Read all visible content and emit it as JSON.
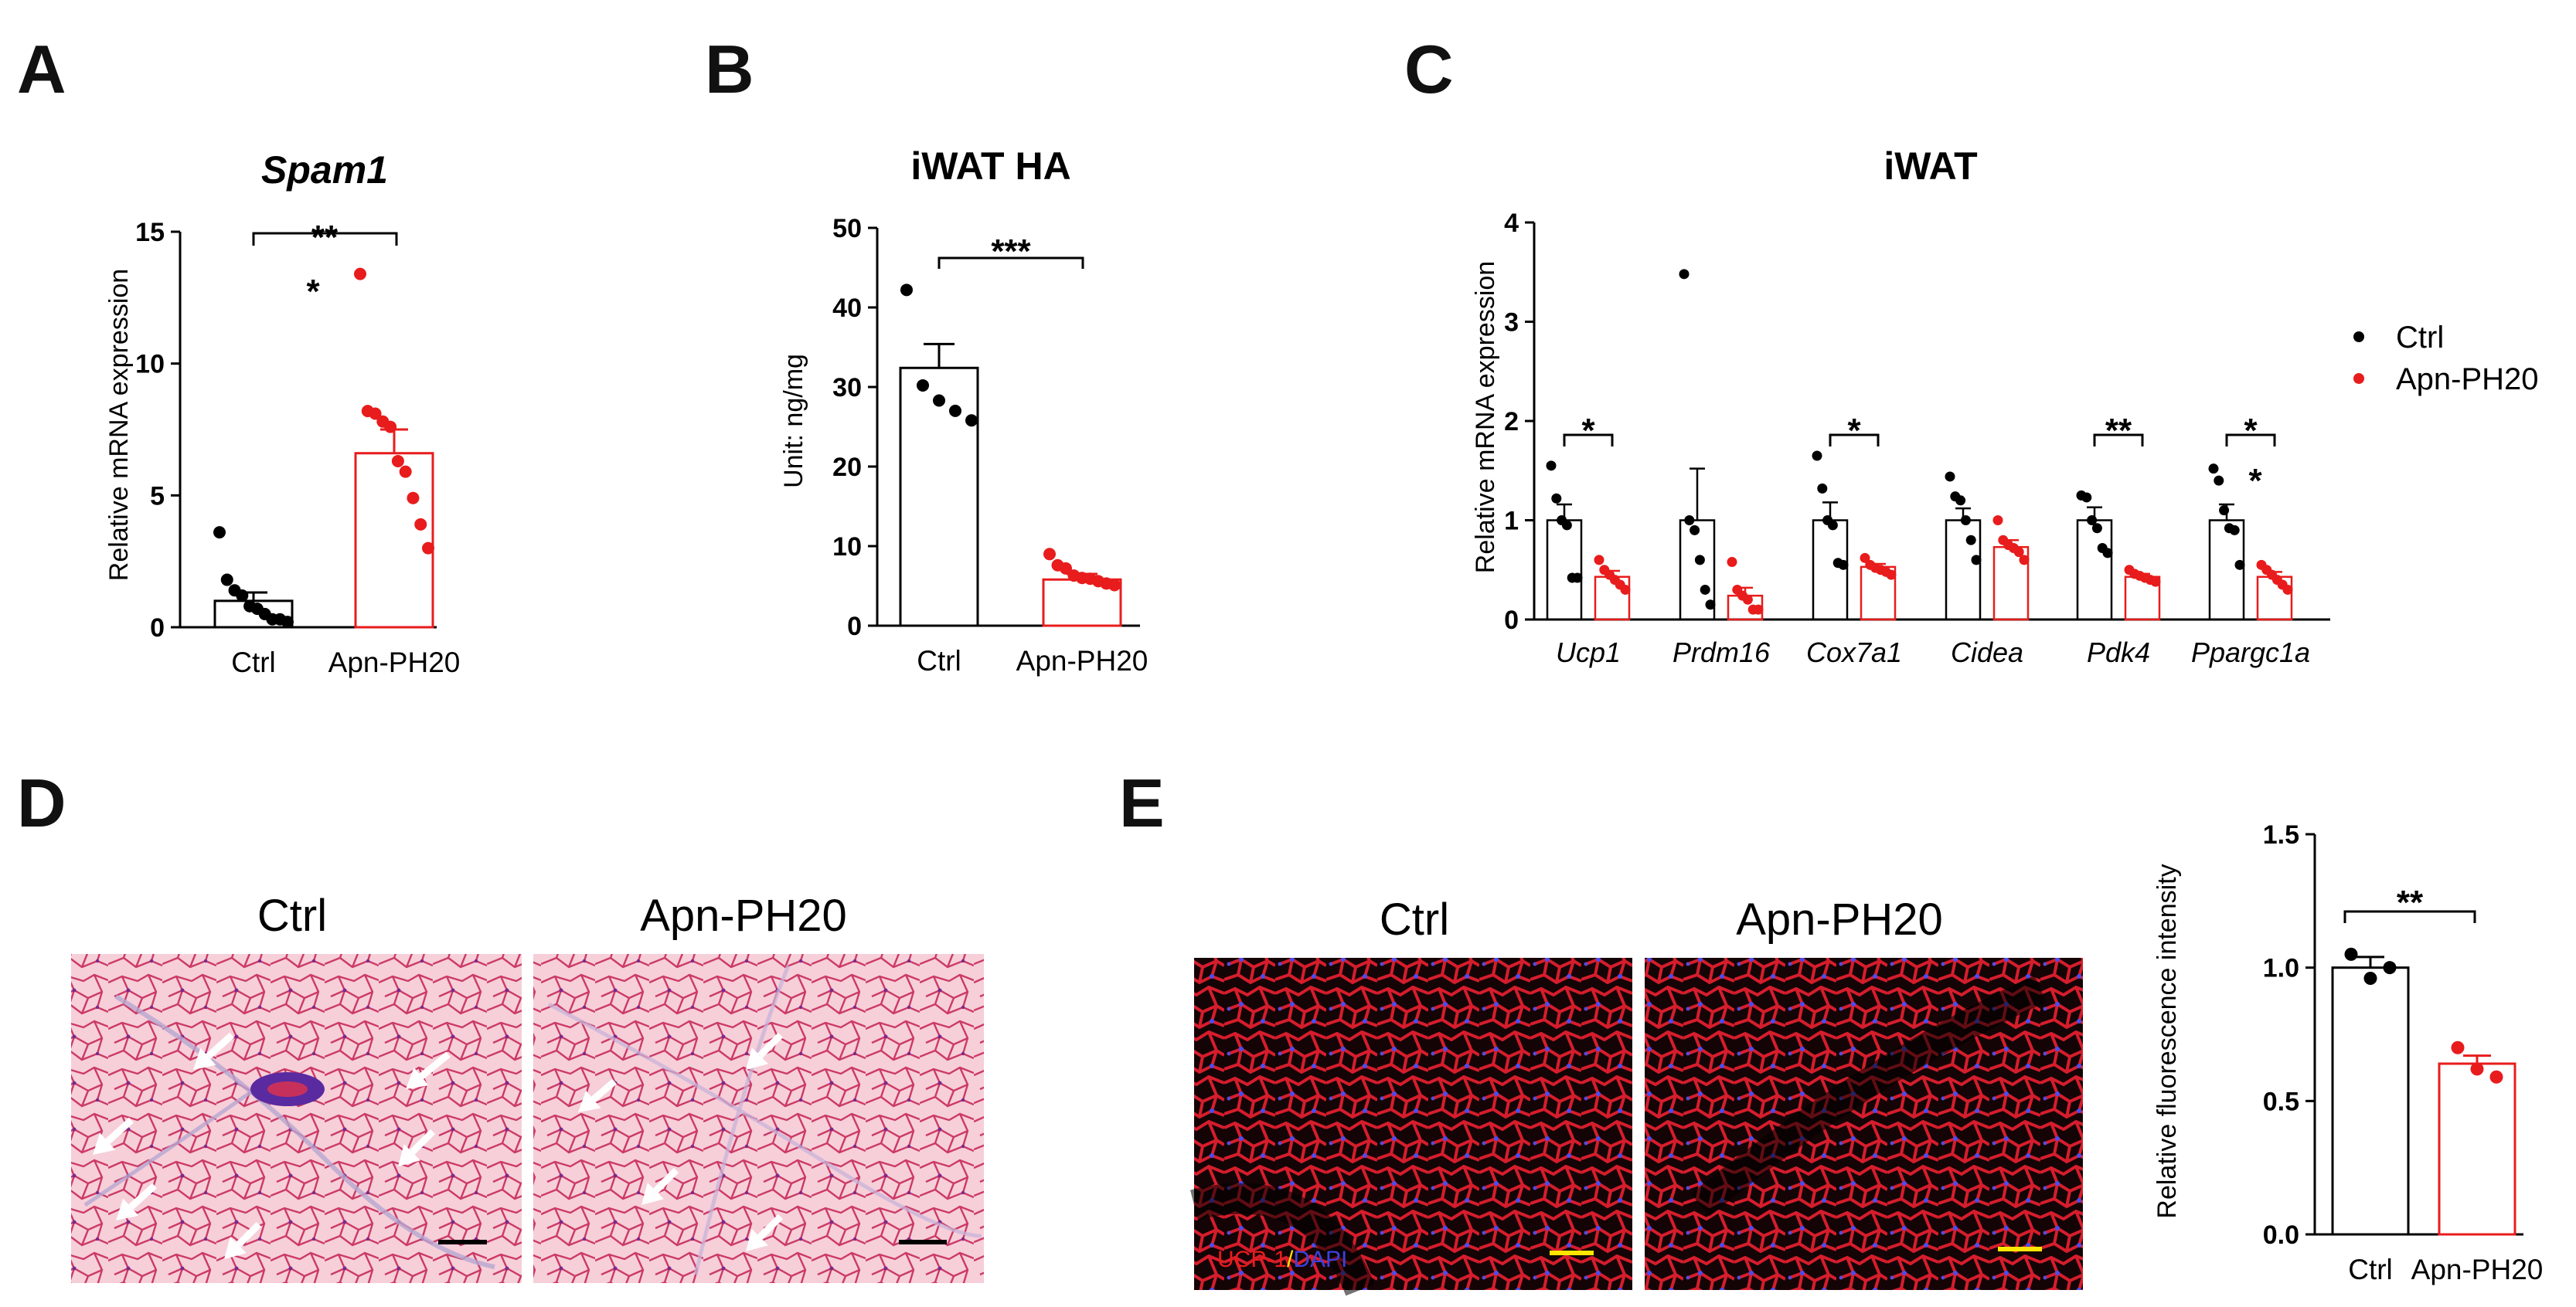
{
  "colors": {
    "ctrl": "#000000",
    "treat": "#e81c1c",
    "he_bg": "#f4c7d2",
    "he_cell": "#c8305c",
    "if_bg": "#120406",
    "if_cell": "#d61e2a",
    "dapi": "#3d40e0",
    "scalebar_yellow": "#ffe600"
  },
  "panels": {
    "A": {
      "letter": "A",
      "title": "Spam1",
      "ylabel": "Relative mRNA expression",
      "sig": "**",
      "extra_star": "*"
    },
    "B": {
      "letter": "B",
      "title": "iWAT HA",
      "ylabel": "Unit: ng/mg",
      "sig": "***"
    },
    "C": {
      "letter": "C",
      "title": "iWAT",
      "ylabel": "Relative mRNA expression",
      "legend": {
        "ctrl": "Ctrl",
        "treat": "Apn-PH20"
      },
      "sig": [
        "*",
        "",
        "*",
        "",
        "**",
        "*"
      ],
      "extra_star": "*"
    },
    "D": {
      "letter": "D",
      "label_ctrl": "Ctrl",
      "label_treat": "Apn-PH20"
    },
    "E": {
      "letter": "E",
      "label_ctrl": "Ctrl",
      "label_treat": "Apn-PH20",
      "stain_ucp": "UCP-1",
      "stain_sep": "/",
      "stain_dapi": "DAPI",
      "ylabel": "Relative fluorescence intensity",
      "sig": "**"
    }
  },
  "chart_data": [
    {
      "id": "A",
      "type": "bar",
      "title": "Spam1",
      "ylabel": "Relative mRNA expression",
      "categories": [
        "Ctrl",
        "Apn-PH20"
      ],
      "ylim": [
        0,
        15
      ],
      "yticks": [
        0,
        5,
        10,
        15
      ],
      "means": [
        1.0,
        6.6
      ],
      "sem": [
        0.32,
        0.9
      ],
      "points": [
        [
          3.6,
          1.8,
          1.4,
          1.2,
          0.8,
          0.7,
          0.5,
          0.3,
          0.3,
          0.2
        ],
        [
          13.4,
          8.2,
          8.1,
          7.8,
          7.6,
          6.3,
          5.9,
          4.9,
          3.9,
          3.0
        ]
      ]
    },
    {
      "id": "B",
      "type": "bar",
      "title": "iWAT HA",
      "ylabel": "Unit: ng/mg",
      "categories": [
        "Ctrl",
        "Apn-PH20"
      ],
      "ylim": [
        0,
        50
      ],
      "yticks": [
        0,
        10,
        20,
        30,
        40,
        50
      ],
      "means": [
        32.4,
        5.8
      ],
      "sem": [
        3.0,
        0.7
      ],
      "points": [
        [
          42.2,
          30.2,
          28.3,
          27.0,
          25.8
        ],
        [
          9.0,
          7.6,
          7.2,
          6.3,
          6.0,
          5.9,
          5.6,
          5.3,
          5.1
        ]
      ]
    },
    {
      "id": "C",
      "type": "bar",
      "title": "iWAT",
      "ylabel": "Relative mRNA expression",
      "categories": [
        "Ucp1",
        "Prdm16",
        "Cox7a1",
        "Cidea",
        "Pdk4",
        "Ppargc1a"
      ],
      "ylim": [
        0,
        4
      ],
      "yticks": [
        0,
        1,
        2,
        3,
        4
      ],
      "series": [
        {
          "name": "Ctrl",
          "means": [
            1.0,
            1.0,
            1.0,
            1.0,
            1.0,
            1.0
          ],
          "sem": [
            0.16,
            0.52,
            0.18,
            0.12,
            0.13,
            0.16
          ],
          "points": [
            [
              1.55,
              1.22,
              1.0,
              0.95,
              0.42,
              0.42
            ],
            [
              3.48,
              1.0,
              0.9,
              0.6,
              0.3,
              0.15
            ],
            [
              1.65,
              1.32,
              1.0,
              0.95,
              0.57,
              0.55
            ],
            [
              1.44,
              1.24,
              1.2,
              1.0,
              0.8,
              0.6
            ],
            [
              1.25,
              1.23,
              1.0,
              0.92,
              0.72,
              0.67
            ],
            [
              1.52,
              1.4,
              1.1,
              0.92,
              0.9,
              0.55
            ]
          ]
        },
        {
          "name": "Apn-PH20",
          "means": [
            0.43,
            0.24,
            0.53,
            0.73,
            0.43,
            0.43
          ],
          "sem": [
            0.06,
            0.08,
            0.03,
            0.07,
            0.03,
            0.05
          ],
          "points": [
            [
              0.6,
              0.5,
              0.45,
              0.4,
              0.35,
              0.3
            ],
            [
              0.58,
              0.3,
              0.24,
              0.2,
              0.1,
              0.1
            ],
            [
              0.62,
              0.55,
              0.52,
              0.5,
              0.48,
              0.45
            ],
            [
              1.0,
              0.8,
              0.75,
              0.72,
              0.68,
              0.6
            ],
            [
              0.5,
              0.46,
              0.44,
              0.42,
              0.4,
              0.38
            ],
            [
              0.55,
              0.5,
              0.45,
              0.4,
              0.35,
              0.3
            ]
          ]
        }
      ]
    },
    {
      "id": "E",
      "type": "bar",
      "ylabel": "Relative fluorescence intensity",
      "categories": [
        "Ctrl",
        "Apn-PH20"
      ],
      "ylim": [
        0,
        1.5
      ],
      "yticks": [
        0.0,
        0.5,
        1.0,
        1.5
      ],
      "means": [
        1.0,
        0.64
      ],
      "sem": [
        0.04,
        0.03
      ],
      "points": [
        [
          1.05,
          0.96,
          1.0
        ],
        [
          0.7,
          0.62,
          0.59
        ]
      ]
    }
  ]
}
